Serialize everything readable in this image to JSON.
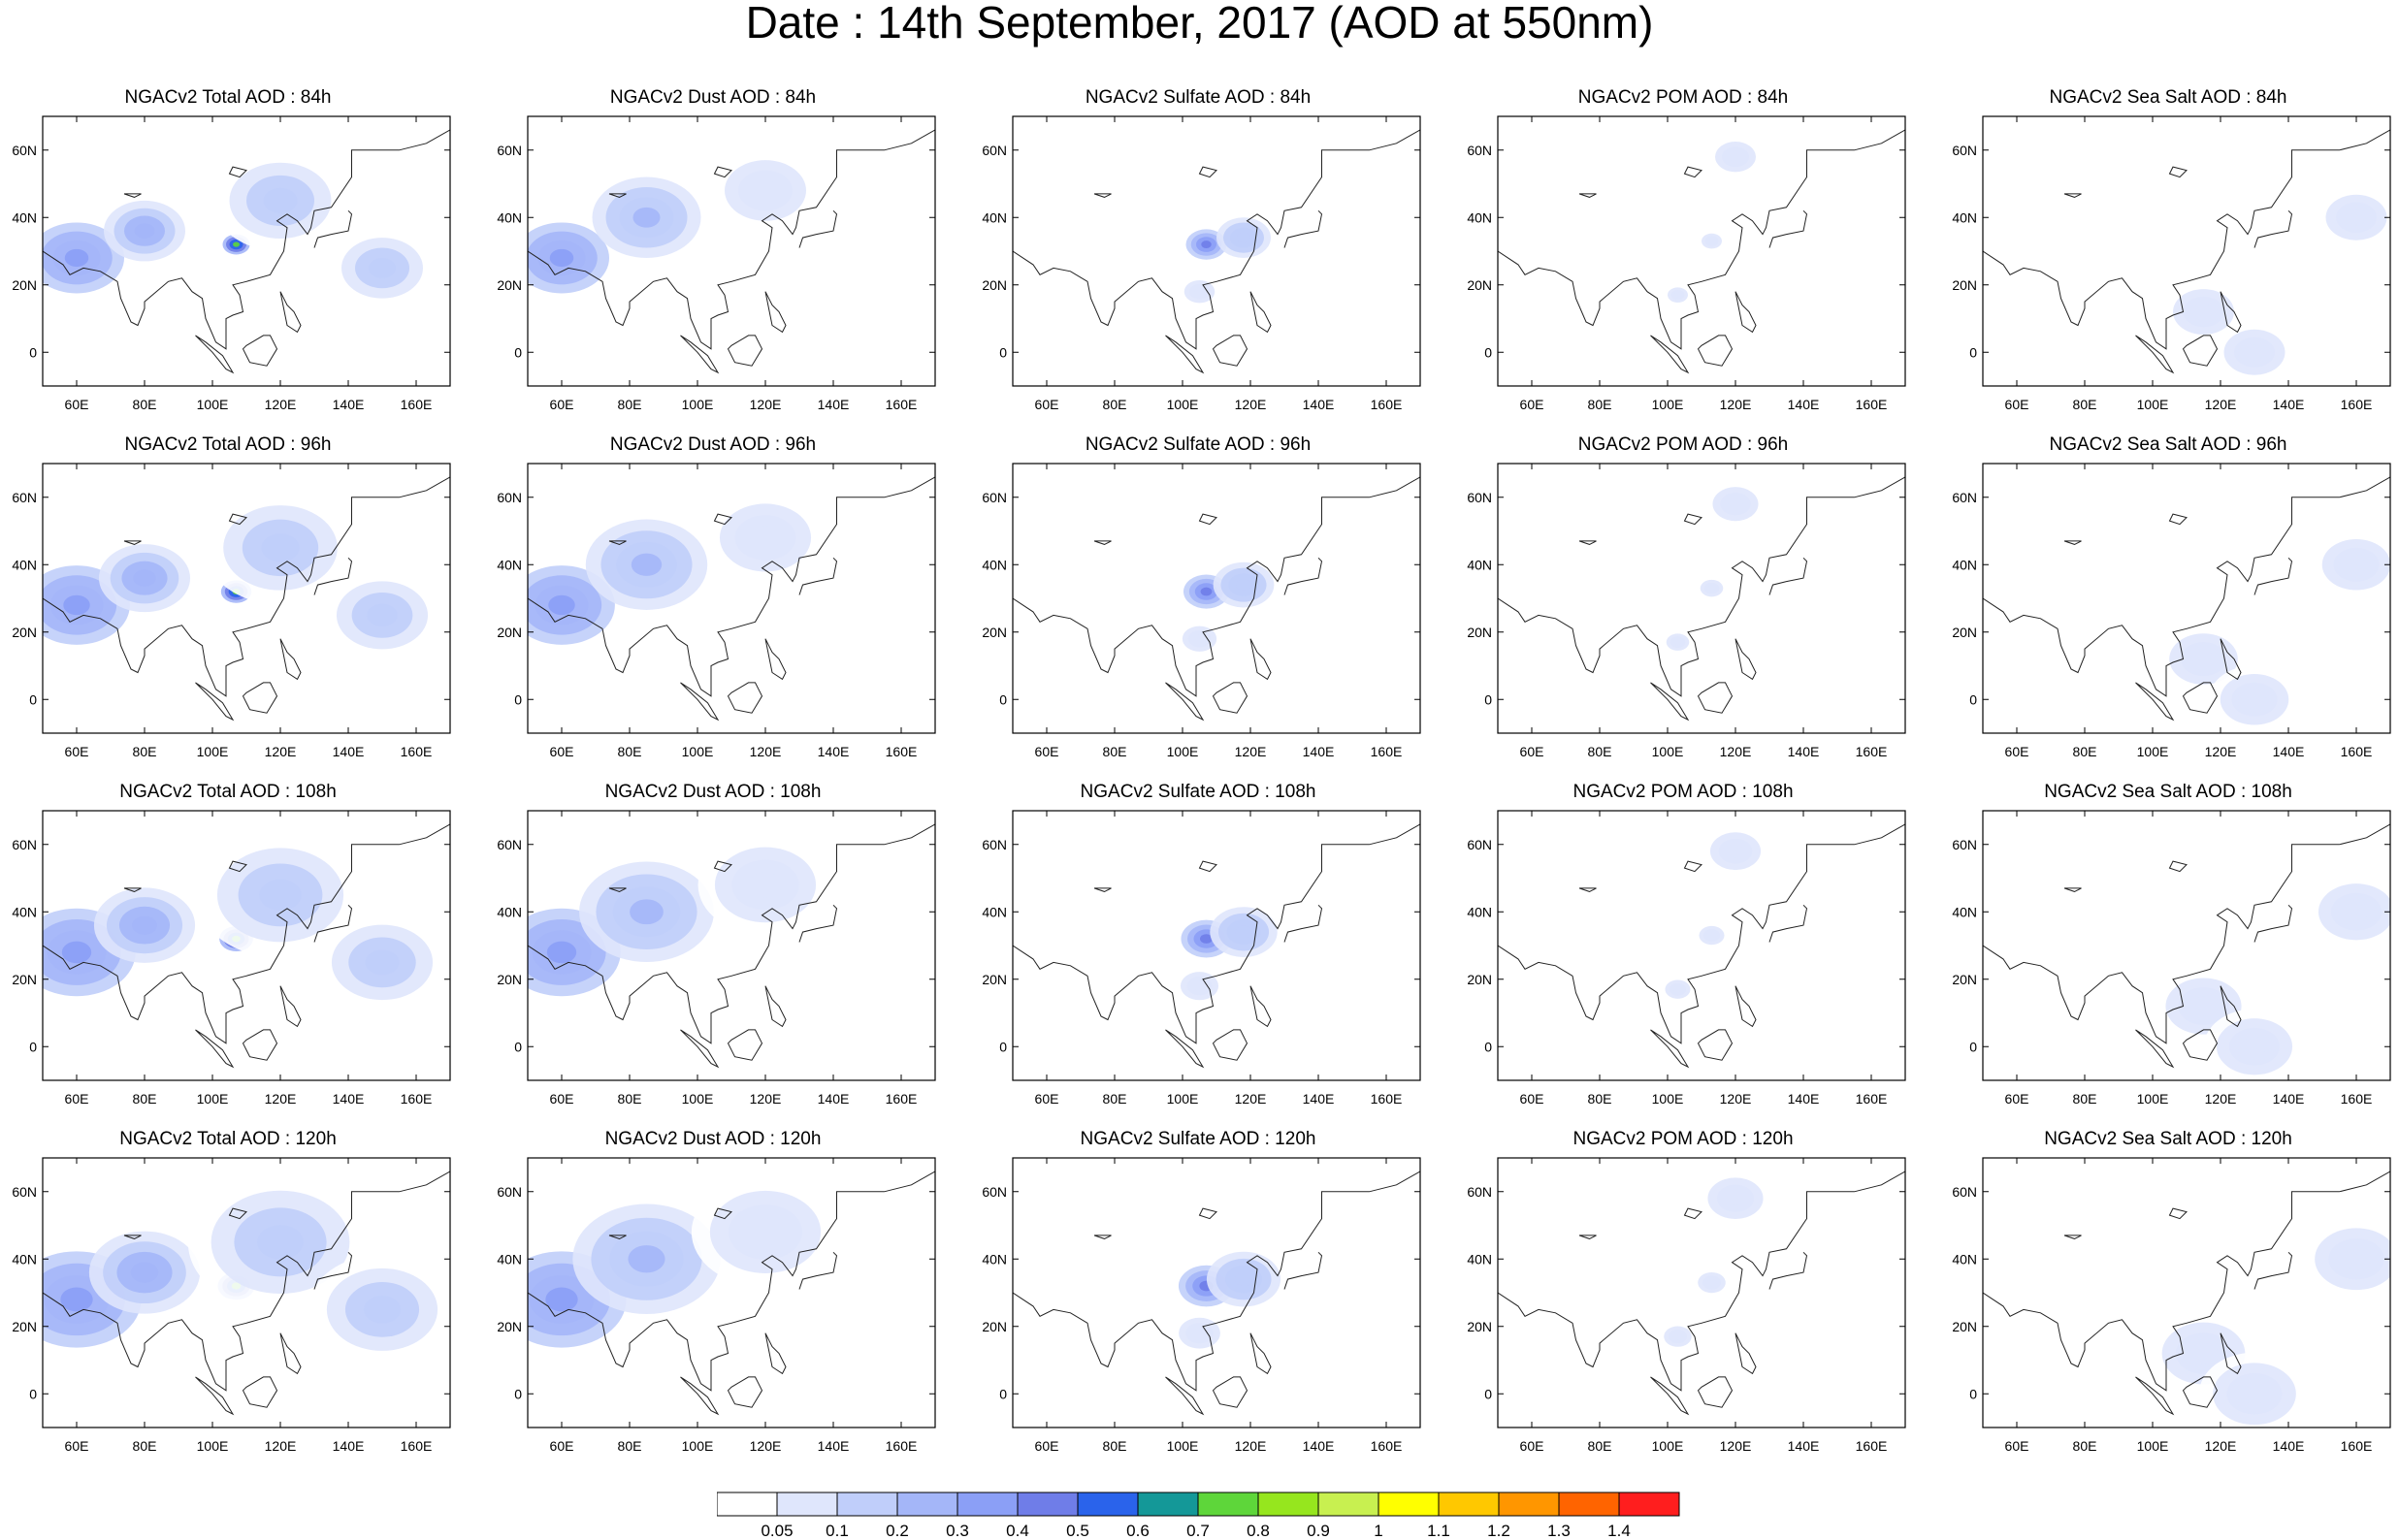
{
  "title": "Date : 14th September, 2017 (AOD at 550nm)",
  "lat_ticks": [
    "60N",
    "40N",
    "20N",
    "0"
  ],
  "lon_ticks": [
    "60E",
    "80E",
    "100E",
    "120E",
    "140E",
    "160E"
  ],
  "panels": [
    [
      {
        "title": "NGACv2 Total AOD : 84h",
        "type": "total"
      },
      {
        "title": "NGACv2 Dust AOD : 84h",
        "type": "dust"
      },
      {
        "title": "NGACv2 Sulfate AOD : 84h",
        "type": "sulfate"
      },
      {
        "title": "NGACv2 POM AOD : 84h",
        "type": "pom"
      },
      {
        "title": "NGACv2 Sea Salt AOD : 84h",
        "type": "seasalt"
      }
    ],
    [
      {
        "title": "NGACv2 Total AOD : 96h",
        "type": "total"
      },
      {
        "title": "NGACv2 Dust AOD : 96h",
        "type": "dust"
      },
      {
        "title": "NGACv2 Sulfate AOD : 96h",
        "type": "sulfate"
      },
      {
        "title": "NGACv2 POM AOD : 96h",
        "type": "pom"
      },
      {
        "title": "NGACv2 Sea Salt AOD : 96h",
        "type": "seasalt"
      }
    ],
    [
      {
        "title": "NGACv2 Total AOD : 108h",
        "type": "total"
      },
      {
        "title": "NGACv2 Dust AOD : 108h",
        "type": "dust"
      },
      {
        "title": "NGACv2 Sulfate AOD : 108h",
        "type": "sulfate"
      },
      {
        "title": "NGACv2 POM AOD : 108h",
        "type": "pom"
      },
      {
        "title": "NGACv2 Sea Salt AOD : 108h",
        "type": "seasalt"
      }
    ],
    [
      {
        "title": "NGACv2 Total AOD : 120h",
        "type": "total"
      },
      {
        "title": "NGACv2 Dust AOD : 120h",
        "type": "dust"
      },
      {
        "title": "NGACv2 Sulfate AOD : 120h",
        "type": "sulfate"
      },
      {
        "title": "NGACv2 POM AOD : 120h",
        "type": "pom"
      },
      {
        "title": "NGACv2 Sea Salt  AOD : 120h",
        "type": "seasalt"
      }
    ]
  ],
  "colorbar": {
    "labels": [
      "0.05",
      "0.1",
      "0.2",
      "0.3",
      "0.4",
      "0.5",
      "0.6",
      "0.7",
      "0.8",
      "0.9",
      "1",
      "1.1",
      "1.2",
      "1.3",
      "1.4"
    ],
    "colors": [
      "#ffffff",
      "#dfe6fc",
      "#c0cefa",
      "#a4b6f8",
      "#8b9ff6",
      "#6f7de8",
      "#2a63eb",
      "#149898",
      "#5ed63a",
      "#96e61e",
      "#c8f050",
      "#ffff00",
      "#ffc800",
      "#ff9600",
      "#ff6400",
      "#ff1e1e"
    ]
  },
  "chart_data": {
    "type": "heatmap",
    "variable": "AOD at 550nm",
    "date": "14th September, 2017",
    "forecast_hours": [
      "84h",
      "96h",
      "108h",
      "120h"
    ],
    "species": [
      "Total",
      "Dust",
      "Sulfate",
      "POM",
      "Sea Salt"
    ],
    "lon_range": [
      50,
      170
    ],
    "lat_range": [
      -10,
      70
    ],
    "levels": [
      0.05,
      0.1,
      0.2,
      0.3,
      0.4,
      0.5,
      0.6,
      0.7,
      0.8,
      0.9,
      1,
      1.1,
      1.2,
      1.3,
      1.4
    ],
    "features": {
      "total": [
        {
          "lon": 60,
          "lat": 28,
          "r": 14,
          "aod": 0.4
        },
        {
          "lon": 80,
          "lat": 36,
          "r": 12,
          "aod": 0.3
        },
        {
          "lon": 107,
          "lat": 32,
          "r": 4,
          "aod": 0.8
        },
        {
          "lon": 120,
          "lat": 45,
          "r": 20,
          "aod": 0.15
        },
        {
          "lon": 150,
          "lat": 25,
          "r": 16,
          "aod": 0.15
        }
      ],
      "dust": [
        {
          "lon": 60,
          "lat": 28,
          "r": 14,
          "aod": 0.4
        },
        {
          "lon": 85,
          "lat": 40,
          "r": 16,
          "aod": 0.25
        },
        {
          "lon": 120,
          "lat": 48,
          "r": 16,
          "aod": 0.1
        }
      ],
      "sulfate": [
        {
          "lon": 107,
          "lat": 32,
          "r": 6,
          "aod": 0.5
        },
        {
          "lon": 118,
          "lat": 34,
          "r": 8,
          "aod": 0.2
        },
        {
          "lon": 105,
          "lat": 18,
          "r": 6,
          "aod": 0.1
        }
      ],
      "pom": [
        {
          "lon": 120,
          "lat": 58,
          "r": 8,
          "aod": 0.1
        },
        {
          "lon": 113,
          "lat": 33,
          "r": 4,
          "aod": 0.1
        },
        {
          "lon": 103,
          "lat": 17,
          "r": 4,
          "aod": 0.1
        }
      ],
      "seasalt": [
        {
          "lon": 160,
          "lat": 40,
          "r": 12,
          "aod": 0.1
        },
        {
          "lon": 115,
          "lat": 12,
          "r": 12,
          "aod": 0.1
        },
        {
          "lon": 130,
          "lat": 0,
          "r": 12,
          "aod": 0.1
        }
      ]
    }
  }
}
